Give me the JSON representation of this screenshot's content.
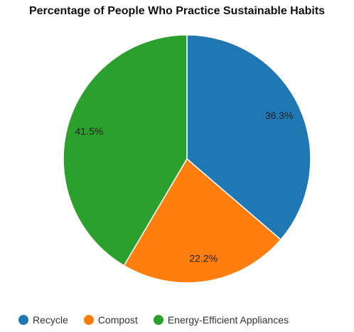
{
  "chart_data": {
    "type": "pie",
    "title": "Percentage of People Who Practice Sustainable Habits",
    "categories": [
      "Recycle",
      "Compost",
      "Energy-Efficient Appliances"
    ],
    "values": [
      36.3,
      22.2,
      41.5
    ],
    "labels": [
      "36.3%",
      "22.2%",
      "41.5%"
    ],
    "colors": [
      "#1f77b4",
      "#ff7f0e",
      "#2ca02c"
    ],
    "legend_position": "bottom-left"
  }
}
